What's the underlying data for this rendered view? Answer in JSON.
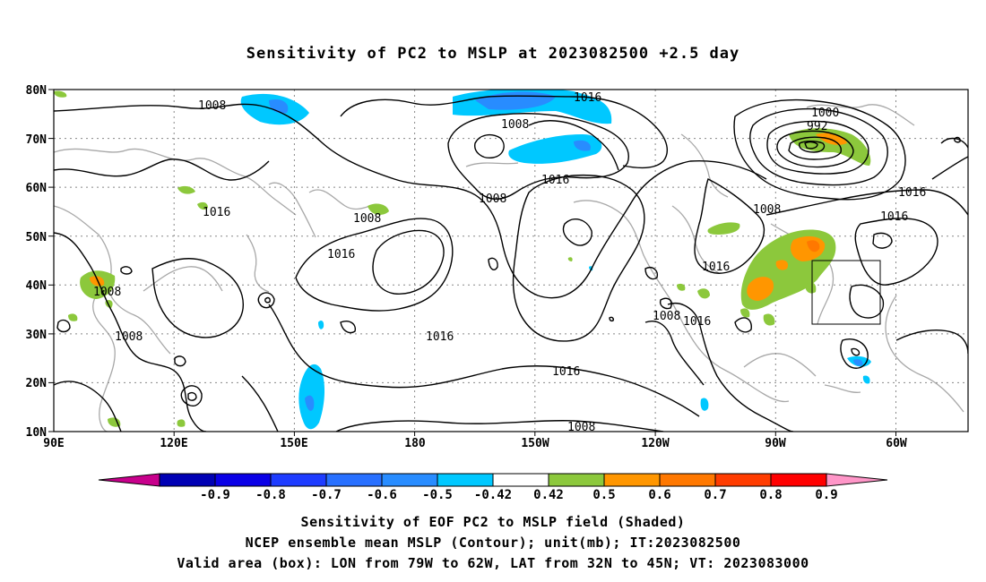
{
  "title": "Sensitivity of PC2 to MSLP at 2023082500 +2.5 day",
  "map": {
    "lon_ticks": [
      "90E",
      "120E",
      "150E",
      "180",
      "150W",
      "120W",
      "90W",
      "60W"
    ],
    "lat_ticks": [
      "80N",
      "70N",
      "60N",
      "50N",
      "40N",
      "30N",
      "20N",
      "10N"
    ],
    "contour_labels": [
      "1008",
      "1016",
      "1008",
      "1016",
      "1008",
      "1016",
      "1008",
      "1008",
      "1016",
      "1016",
      "1008",
      "1008",
      "1016",
      "1016",
      "1008",
      "1016",
      "1000",
      "992",
      "1008",
      "1016",
      "1016",
      "1016"
    ],
    "valid_box": {
      "lon_from": "79W",
      "lon_to": "62W",
      "lat_from": "32N",
      "lat_to": "45N"
    }
  },
  "colorbar": {
    "labels": [
      "-0.9",
      "-0.8",
      "-0.7",
      "-0.6",
      "-0.5",
      "-0.42",
      "0.42",
      "0.5",
      "0.6",
      "0.7",
      "0.8",
      "0.9"
    ],
    "colors": [
      "#c8008c",
      "#0000b4",
      "#0a00e6",
      "#1e3cff",
      "#2870ff",
      "#288cff",
      "#00c8ff",
      "#ffffff",
      "#8cc83c",
      "#ff9600",
      "#ff7800",
      "#ff3c00",
      "#ff0000",
      "#ff96c8"
    ]
  },
  "shading_colors": {
    "green": "#8cc83c",
    "orange": "#ff9600",
    "dark_orange": "#ff7800",
    "cyan": "#00c8ff",
    "blue": "#288cff"
  },
  "captions": [
    "Sensitivity of EOF PC2 to MSLP field (Shaded)",
    "NCEP ensemble mean MSLP (Contour); unit(mb); IT:2023082500",
    "Valid area (box): LON from 79W to 62W, LAT from 32N to 45N; VT: 2023083000"
  ]
}
